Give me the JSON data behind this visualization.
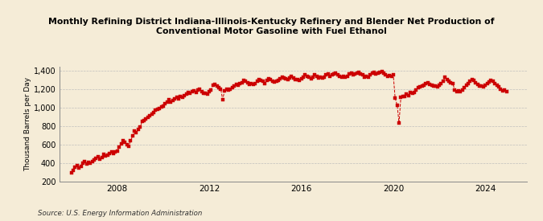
{
  "title": "Monthly Refining District Indiana-Illinois-Kentucky Refinery and Blender Net Production of\nConventional Motor Gasoline with Fuel Ethanol",
  "ylabel": "Thousand Barrels per Day",
  "source": "Source: U.S. Energy Information Administration",
  "bg_color": "#f5ecd7",
  "line_color": "#cc0000",
  "ylim": [
    200,
    1450
  ],
  "yticks": [
    200,
    400,
    600,
    800,
    1000,
    1200,
    1400
  ],
  "ytick_labels": [
    "200",
    "400",
    "600",
    "800",
    "1,000",
    "1,200",
    "1,400"
  ],
  "xlim_start": 2005.5,
  "xlim_end": 2025.8,
  "xticks": [
    2008,
    2012,
    2016,
    2020,
    2024
  ],
  "data": [
    [
      2006.0,
      295
    ],
    [
      2006.08,
      320
    ],
    [
      2006.17,
      350
    ],
    [
      2006.25,
      370
    ],
    [
      2006.33,
      345
    ],
    [
      2006.42,
      365
    ],
    [
      2006.5,
      395
    ],
    [
      2006.58,
      415
    ],
    [
      2006.67,
      385
    ],
    [
      2006.75,
      405
    ],
    [
      2006.83,
      395
    ],
    [
      2006.92,
      415
    ],
    [
      2007.0,
      430
    ],
    [
      2007.08,
      450
    ],
    [
      2007.17,
      470
    ],
    [
      2007.25,
      440
    ],
    [
      2007.33,
      460
    ],
    [
      2007.42,
      490
    ],
    [
      2007.5,
      475
    ],
    [
      2007.58,
      480
    ],
    [
      2007.67,
      500
    ],
    [
      2007.75,
      520
    ],
    [
      2007.83,
      505
    ],
    [
      2007.92,
      520
    ],
    [
      2008.0,
      530
    ],
    [
      2008.08,
      570
    ],
    [
      2008.17,
      610
    ],
    [
      2008.25,
      640
    ],
    [
      2008.33,
      625
    ],
    [
      2008.42,
      600
    ],
    [
      2008.5,
      580
    ],
    [
      2008.58,
      640
    ],
    [
      2008.67,
      690
    ],
    [
      2008.75,
      745
    ],
    [
      2008.83,
      730
    ],
    [
      2008.92,
      760
    ],
    [
      2009.0,
      790
    ],
    [
      2009.08,
      850
    ],
    [
      2009.17,
      860
    ],
    [
      2009.25,
      875
    ],
    [
      2009.33,
      895
    ],
    [
      2009.42,
      910
    ],
    [
      2009.5,
      930
    ],
    [
      2009.58,
      950
    ],
    [
      2009.67,
      970
    ],
    [
      2009.75,
      985
    ],
    [
      2009.83,
      990
    ],
    [
      2009.92,
      1005
    ],
    [
      2010.0,
      1015
    ],
    [
      2010.08,
      1040
    ],
    [
      2010.17,
      1060
    ],
    [
      2010.25,
      1085
    ],
    [
      2010.33,
      1060
    ],
    [
      2010.42,
      1075
    ],
    [
      2010.5,
      1095
    ],
    [
      2010.58,
      1115
    ],
    [
      2010.67,
      1095
    ],
    [
      2010.75,
      1125
    ],
    [
      2010.83,
      1110
    ],
    [
      2010.92,
      1130
    ],
    [
      2011.0,
      1145
    ],
    [
      2011.08,
      1165
    ],
    [
      2011.17,
      1155
    ],
    [
      2011.25,
      1175
    ],
    [
      2011.33,
      1185
    ],
    [
      2011.42,
      1165
    ],
    [
      2011.5,
      1195
    ],
    [
      2011.58,
      1205
    ],
    [
      2011.67,
      1175
    ],
    [
      2011.75,
      1155
    ],
    [
      2011.83,
      1160
    ],
    [
      2011.92,
      1150
    ],
    [
      2012.0,
      1175
    ],
    [
      2012.08,
      1195
    ],
    [
      2012.17,
      1245
    ],
    [
      2012.25,
      1255
    ],
    [
      2012.33,
      1240
    ],
    [
      2012.42,
      1220
    ],
    [
      2012.5,
      1205
    ],
    [
      2012.58,
      1090
    ],
    [
      2012.67,
      1185
    ],
    [
      2012.75,
      1200
    ],
    [
      2012.83,
      1190
    ],
    [
      2012.92,
      1205
    ],
    [
      2013.0,
      1215
    ],
    [
      2013.08,
      1235
    ],
    [
      2013.17,
      1255
    ],
    [
      2013.25,
      1245
    ],
    [
      2013.33,
      1265
    ],
    [
      2013.42,
      1275
    ],
    [
      2013.5,
      1295
    ],
    [
      2013.58,
      1285
    ],
    [
      2013.67,
      1275
    ],
    [
      2013.75,
      1255
    ],
    [
      2013.83,
      1260
    ],
    [
      2013.92,
      1255
    ],
    [
      2014.0,
      1265
    ],
    [
      2014.08,
      1285
    ],
    [
      2014.17,
      1305
    ],
    [
      2014.25,
      1295
    ],
    [
      2014.33,
      1285
    ],
    [
      2014.42,
      1265
    ],
    [
      2014.5,
      1295
    ],
    [
      2014.58,
      1315
    ],
    [
      2014.67,
      1305
    ],
    [
      2014.75,
      1285
    ],
    [
      2014.83,
      1280
    ],
    [
      2014.92,
      1285
    ],
    [
      2015.0,
      1295
    ],
    [
      2015.08,
      1315
    ],
    [
      2015.17,
      1335
    ],
    [
      2015.25,
      1325
    ],
    [
      2015.33,
      1315
    ],
    [
      2015.42,
      1305
    ],
    [
      2015.5,
      1325
    ],
    [
      2015.58,
      1345
    ],
    [
      2015.67,
      1325
    ],
    [
      2015.75,
      1305
    ],
    [
      2015.83,
      1310
    ],
    [
      2015.92,
      1300
    ],
    [
      2016.0,
      1315
    ],
    [
      2016.08,
      1335
    ],
    [
      2016.17,
      1355
    ],
    [
      2016.25,
      1345
    ],
    [
      2016.33,
      1335
    ],
    [
      2016.42,
      1315
    ],
    [
      2016.5,
      1335
    ],
    [
      2016.58,
      1355
    ],
    [
      2016.67,
      1345
    ],
    [
      2016.75,
      1325
    ],
    [
      2016.83,
      1330
    ],
    [
      2016.92,
      1320
    ],
    [
      2017.0,
      1335
    ],
    [
      2017.08,
      1355
    ],
    [
      2017.17,
      1365
    ],
    [
      2017.25,
      1345
    ],
    [
      2017.33,
      1355
    ],
    [
      2017.42,
      1365
    ],
    [
      2017.5,
      1375
    ],
    [
      2017.58,
      1355
    ],
    [
      2017.67,
      1345
    ],
    [
      2017.75,
      1335
    ],
    [
      2017.83,
      1340
    ],
    [
      2017.92,
      1330
    ],
    [
      2018.0,
      1345
    ],
    [
      2018.08,
      1365
    ],
    [
      2018.17,
      1375
    ],
    [
      2018.25,
      1355
    ],
    [
      2018.33,
      1365
    ],
    [
      2018.42,
      1375
    ],
    [
      2018.5,
      1385
    ],
    [
      2018.58,
      1365
    ],
    [
      2018.67,
      1355
    ],
    [
      2018.75,
      1335
    ],
    [
      2018.83,
      1340
    ],
    [
      2018.92,
      1330
    ],
    [
      2019.0,
      1355
    ],
    [
      2019.08,
      1375
    ],
    [
      2019.17,
      1385
    ],
    [
      2019.25,
      1365
    ],
    [
      2019.33,
      1375
    ],
    [
      2019.42,
      1385
    ],
    [
      2019.5,
      1395
    ],
    [
      2019.58,
      1375
    ],
    [
      2019.67,
      1355
    ],
    [
      2019.75,
      1345
    ],
    [
      2019.83,
      1350
    ],
    [
      2019.92,
      1340
    ],
    [
      2020.0,
      1355
    ],
    [
      2020.08,
      1105
    ],
    [
      2020.17,
      1025
    ],
    [
      2020.25,
      835
    ],
    [
      2020.33,
      1115
    ],
    [
      2020.42,
      1125
    ],
    [
      2020.5,
      1125
    ],
    [
      2020.58,
      1145
    ],
    [
      2020.67,
      1135
    ],
    [
      2020.75,
      1165
    ],
    [
      2020.83,
      1155
    ],
    [
      2020.92,
      1170
    ],
    [
      2021.0,
      1195
    ],
    [
      2021.08,
      1215
    ],
    [
      2021.17,
      1225
    ],
    [
      2021.25,
      1235
    ],
    [
      2021.33,
      1245
    ],
    [
      2021.42,
      1265
    ],
    [
      2021.5,
      1275
    ],
    [
      2021.58,
      1255
    ],
    [
      2021.67,
      1245
    ],
    [
      2021.75,
      1235
    ],
    [
      2021.83,
      1240
    ],
    [
      2021.92,
      1230
    ],
    [
      2022.0,
      1245
    ],
    [
      2022.08,
      1265
    ],
    [
      2022.17,
      1285
    ],
    [
      2022.25,
      1335
    ],
    [
      2022.33,
      1305
    ],
    [
      2022.42,
      1285
    ],
    [
      2022.5,
      1275
    ],
    [
      2022.58,
      1265
    ],
    [
      2022.67,
      1195
    ],
    [
      2022.75,
      1175
    ],
    [
      2022.83,
      1185
    ],
    [
      2022.92,
      1175
    ],
    [
      2023.0,
      1195
    ],
    [
      2023.08,
      1215
    ],
    [
      2023.17,
      1245
    ],
    [
      2023.25,
      1265
    ],
    [
      2023.33,
      1285
    ],
    [
      2023.42,
      1305
    ],
    [
      2023.5,
      1295
    ],
    [
      2023.58,
      1275
    ],
    [
      2023.67,
      1255
    ],
    [
      2023.75,
      1235
    ],
    [
      2023.83,
      1240
    ],
    [
      2023.92,
      1230
    ],
    [
      2024.0,
      1245
    ],
    [
      2024.08,
      1265
    ],
    [
      2024.17,
      1280
    ],
    [
      2024.25,
      1300
    ],
    [
      2024.33,
      1285
    ],
    [
      2024.42,
      1265
    ],
    [
      2024.5,
      1245
    ],
    [
      2024.58,
      1225
    ],
    [
      2024.67,
      1205
    ],
    [
      2024.75,
      1185
    ],
    [
      2024.83,
      1195
    ],
    [
      2024.92,
      1175
    ]
  ]
}
